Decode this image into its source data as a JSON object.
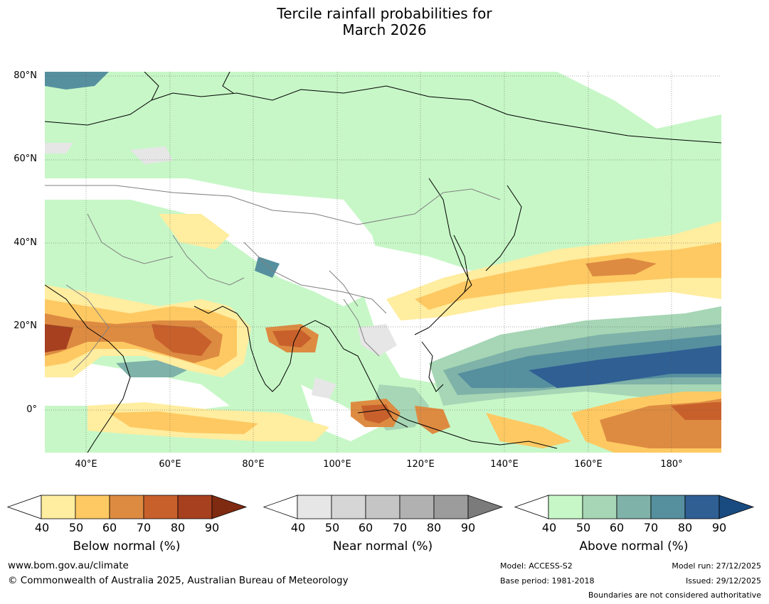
{
  "title_line1": "Tercile rainfall probabilities for",
  "title_line2": "March 2026",
  "lat_labels": [
    "80°N",
    "60°N",
    "40°N",
    "20°N",
    "0°"
  ],
  "lon_labels": [
    "40°E",
    "60°E",
    "80°E",
    "100°E",
    "120°E",
    "140°E",
    "160°E",
    "180°"
  ],
  "colors": {
    "below": [
      "#ffeda0",
      "#fec962",
      "#de8b42",
      "#c8602c",
      "#a6401f",
      "#7f2b11"
    ],
    "near": [
      "#e6e6e6",
      "#d6d6d6",
      "#c5c5c5",
      "#b0b1b0",
      "#9c9c9c",
      "#7b7b7b"
    ],
    "above": [
      "#c7f7c7",
      "#a6d6b5",
      "#7fb2a8",
      "#56909f",
      "#2f5f93",
      "#1a4b80"
    ]
  },
  "colorbars": [
    {
      "id": "below",
      "label": "Below normal (%)",
      "ticks": [
        "40",
        "50",
        "60",
        "70",
        "80",
        "90"
      ]
    },
    {
      "id": "near",
      "label": "Near normal (%)",
      "ticks": [
        "40",
        "50",
        "60",
        "70",
        "80",
        "90"
      ]
    },
    {
      "id": "above",
      "label": "Above normal (%)",
      "ticks": [
        "40",
        "50",
        "60",
        "70",
        "80",
        "90"
      ]
    }
  ],
  "footer": {
    "website": "www.bom.gov.au/climate",
    "copyright": "© Commonwealth of Australia 2025, Australian Bureau of Meteorology",
    "model": "Model: ACCESS-S2",
    "base_period": "Base period: 1981-2018",
    "model_run": "Model run: 27/12/2025",
    "issued": "Issued: 29/12/2025",
    "boundaries": "Boundaries are not considered authoritative"
  }
}
